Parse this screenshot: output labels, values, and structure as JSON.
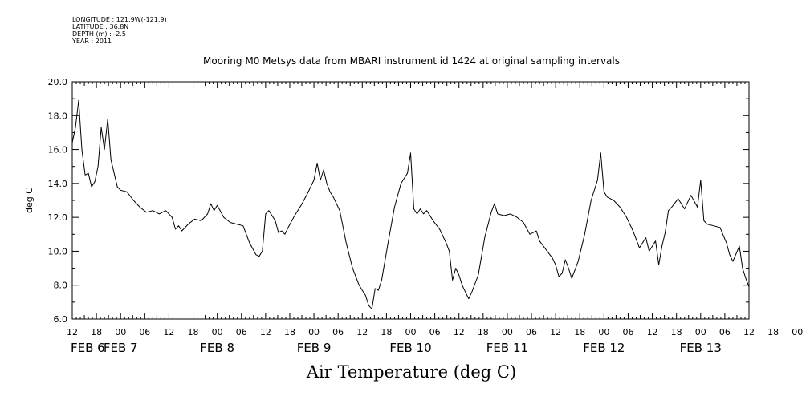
{
  "meta": {
    "longitude": "LONGITUDE : 121.9W(-121.9)",
    "latitude": "LATITUDE : 36.8N",
    "depth": "DEPTH (m) : -2.5",
    "year": "YEAR : 2011"
  },
  "chart_data": {
    "type": "line",
    "title": "Mooring M0 Metsys data from MBARI instrument id 1424 at original sampling intervals",
    "xlabel": "Air Temperature (deg C)",
    "ylabel": "deg C",
    "ylim": [
      6.0,
      20.0
    ],
    "y_ticks": [
      "6.0",
      "8.0",
      "10.0",
      "12.0",
      "14.0",
      "16.0",
      "18.0",
      "20.0"
    ],
    "x_range": [
      "2011-02-06T12:00",
      "2011-02-13T12:00"
    ],
    "x_hour_ticks": [
      "12",
      "18",
      "00",
      "06",
      "12",
      "18",
      "00",
      "06",
      "12",
      "18",
      "00",
      "06",
      "12",
      "18",
      "00",
      "06",
      "12",
      "18",
      "00",
      "06",
      "12",
      "18",
      "00",
      "06",
      "12",
      "18",
      "00",
      "06",
      "12",
      "18",
      "00",
      "06",
      "12",
      "18",
      "00",
      "06",
      "12",
      "18",
      "00",
      "06",
      "12",
      "18",
      "00",
      "06",
      "12"
    ],
    "x_day_labels": [
      {
        "label": "FEB  6",
        "at": "2011-02-06T12:00"
      },
      {
        "label": "FEB  7",
        "at": "2011-02-07T00:00"
      },
      {
        "label": "FEB  8",
        "at": "2011-02-08T00:00"
      },
      {
        "label": "FEB  9",
        "at": "2011-02-09T00:00"
      },
      {
        "label": "FEB 10",
        "at": "2011-02-10T00:00"
      },
      {
        "label": "FEB 11",
        "at": "2011-02-11T00:00"
      },
      {
        "label": "FEB 12",
        "at": "2011-02-12T00:00"
      },
      {
        "label": "FEB 13",
        "at": "2011-02-13T00:00"
      }
    ],
    "grid": false,
    "series": [
      {
        "points": [
          [
            "2011-02-06T12:00",
            16.4
          ],
          [
            "2011-02-06T12:48",
            17.3
          ],
          [
            "2011-02-06T13:36",
            18.9
          ],
          [
            "2011-02-06T14:24",
            16.0
          ],
          [
            "2011-02-06T15:12",
            14.5
          ],
          [
            "2011-02-06T16:00",
            14.6
          ],
          [
            "2011-02-06T16:48",
            13.8
          ],
          [
            "2011-02-06T17:36",
            14.1
          ],
          [
            "2011-02-06T18:24",
            15.0
          ],
          [
            "2011-02-06T19:12",
            17.3
          ],
          [
            "2011-02-06T20:00",
            16.0
          ],
          [
            "2011-02-06T20:48",
            17.8
          ],
          [
            "2011-02-06T21:36",
            15.4
          ],
          [
            "2011-02-06T22:24",
            14.6
          ],
          [
            "2011-02-06T23:12",
            13.8
          ],
          [
            "2011-02-07T00:00",
            13.6
          ],
          [
            "2011-02-07T01:36",
            13.5
          ],
          [
            "2011-02-07T03:12",
            13.0
          ],
          [
            "2011-02-07T04:48",
            12.6
          ],
          [
            "2011-02-07T06:24",
            12.3
          ],
          [
            "2011-02-07T08:00",
            12.4
          ],
          [
            "2011-02-07T09:36",
            12.2
          ],
          [
            "2011-02-07T11:12",
            12.4
          ],
          [
            "2011-02-07T12:48",
            12.0
          ],
          [
            "2011-02-07T13:36",
            11.3
          ],
          [
            "2011-02-07T14:24",
            11.5
          ],
          [
            "2011-02-07T15:12",
            11.2
          ],
          [
            "2011-02-07T16:48",
            11.6
          ],
          [
            "2011-02-07T18:24",
            11.9
          ],
          [
            "2011-02-07T20:00",
            11.8
          ],
          [
            "2011-02-07T21:36",
            12.2
          ],
          [
            "2011-02-07T22:24",
            12.8
          ],
          [
            "2011-02-07T23:12",
            12.4
          ],
          [
            "2011-02-08T00:00",
            12.7
          ],
          [
            "2011-02-08T01:36",
            12.0
          ],
          [
            "2011-02-08T03:12",
            11.7
          ],
          [
            "2011-02-08T04:48",
            11.6
          ],
          [
            "2011-02-08T06:24",
            11.5
          ],
          [
            "2011-02-08T08:00",
            10.5
          ],
          [
            "2011-02-08T09:36",
            9.8
          ],
          [
            "2011-02-08T10:24",
            9.7
          ],
          [
            "2011-02-08T11:12",
            10.0
          ],
          [
            "2011-02-08T12:00",
            12.2
          ],
          [
            "2011-02-08T12:48",
            12.4
          ],
          [
            "2011-02-08T14:24",
            11.8
          ],
          [
            "2011-02-08T15:12",
            11.1
          ],
          [
            "2011-02-08T16:00",
            11.2
          ],
          [
            "2011-02-08T16:48",
            11.0
          ],
          [
            "2011-02-08T17:36",
            11.4
          ],
          [
            "2011-02-08T19:12",
            12.1
          ],
          [
            "2011-02-08T20:48",
            12.7
          ],
          [
            "2011-02-08T22:24",
            13.4
          ],
          [
            "2011-02-09T00:00",
            14.2
          ],
          [
            "2011-02-09T00:48",
            15.2
          ],
          [
            "2011-02-09T01:36",
            14.2
          ],
          [
            "2011-02-09T02:24",
            14.8
          ],
          [
            "2011-02-09T03:12",
            14.0
          ],
          [
            "2011-02-09T04:00",
            13.5
          ],
          [
            "2011-02-09T04:48",
            13.2
          ],
          [
            "2011-02-09T06:24",
            12.4
          ],
          [
            "2011-02-09T08:00",
            10.5
          ],
          [
            "2011-02-09T09:36",
            9.0
          ],
          [
            "2011-02-09T11:12",
            8.0
          ],
          [
            "2011-02-09T12:00",
            7.7
          ],
          [
            "2011-02-09T12:48",
            7.4
          ],
          [
            "2011-02-09T13:36",
            6.8
          ],
          [
            "2011-02-09T14:24",
            6.6
          ],
          [
            "2011-02-09T15:12",
            7.8
          ],
          [
            "2011-02-09T16:00",
            7.7
          ],
          [
            "2011-02-09T16:48",
            8.3
          ],
          [
            "2011-02-09T18:24",
            10.5
          ],
          [
            "2011-02-09T20:00",
            12.6
          ],
          [
            "2011-02-09T21:36",
            14.0
          ],
          [
            "2011-02-09T23:12",
            14.6
          ],
          [
            "2011-02-10T00:00",
            15.8
          ],
          [
            "2011-02-10T00:48",
            12.5
          ],
          [
            "2011-02-10T01:36",
            12.2
          ],
          [
            "2011-02-10T02:24",
            12.5
          ],
          [
            "2011-02-10T03:12",
            12.2
          ],
          [
            "2011-02-10T04:00",
            12.4
          ],
          [
            "2011-02-10T05:36",
            11.8
          ],
          [
            "2011-02-10T07:12",
            11.3
          ],
          [
            "2011-02-10T08:48",
            10.5
          ],
          [
            "2011-02-10T09:36",
            10.0
          ],
          [
            "2011-02-10T10:24",
            8.3
          ],
          [
            "2011-02-10T11:12",
            9.0
          ],
          [
            "2011-02-10T12:00",
            8.6
          ],
          [
            "2011-02-10T12:48",
            8.0
          ],
          [
            "2011-02-10T13:36",
            7.6
          ],
          [
            "2011-02-10T14:24",
            7.2
          ],
          [
            "2011-02-10T15:12",
            7.6
          ],
          [
            "2011-02-10T16:48",
            8.6
          ],
          [
            "2011-02-10T18:24",
            10.8
          ],
          [
            "2011-02-10T20:00",
            12.3
          ],
          [
            "2011-02-10T20:48",
            12.8
          ],
          [
            "2011-02-10T21:36",
            12.2
          ],
          [
            "2011-02-10T23:12",
            12.1
          ],
          [
            "2011-02-11T00:48",
            12.2
          ],
          [
            "2011-02-11T02:24",
            12.0
          ],
          [
            "2011-02-11T04:00",
            11.7
          ],
          [
            "2011-02-11T05:36",
            11.0
          ],
          [
            "2011-02-11T07:12",
            11.2
          ],
          [
            "2011-02-11T08:00",
            10.6
          ],
          [
            "2011-02-11T09:36",
            10.1
          ],
          [
            "2011-02-11T11:12",
            9.6
          ],
          [
            "2011-02-11T12:00",
            9.2
          ],
          [
            "2011-02-11T12:48",
            8.5
          ],
          [
            "2011-02-11T13:36",
            8.7
          ],
          [
            "2011-02-11T14:24",
            9.5
          ],
          [
            "2011-02-11T15:12",
            9.0
          ],
          [
            "2011-02-11T16:00",
            8.4
          ],
          [
            "2011-02-11T17:36",
            9.4
          ],
          [
            "2011-02-11T19:12",
            11.0
          ],
          [
            "2011-02-11T20:48",
            13.0
          ],
          [
            "2011-02-11T22:24",
            14.2
          ],
          [
            "2011-02-11T23:12",
            15.8
          ],
          [
            "2011-02-12T00:00",
            13.5
          ],
          [
            "2011-02-12T00:48",
            13.2
          ],
          [
            "2011-02-12T02:24",
            13.0
          ],
          [
            "2011-02-12T04:00",
            12.6
          ],
          [
            "2011-02-12T05:36",
            12.0
          ],
          [
            "2011-02-12T07:12",
            11.2
          ],
          [
            "2011-02-12T08:48",
            10.2
          ],
          [
            "2011-02-12T10:24",
            10.8
          ],
          [
            "2011-02-12T11:12",
            10.0
          ],
          [
            "2011-02-12T12:48",
            10.6
          ],
          [
            "2011-02-12T13:36",
            9.2
          ],
          [
            "2011-02-12T14:24",
            10.3
          ],
          [
            "2011-02-12T15:12",
            11.1
          ],
          [
            "2011-02-12T16:00",
            12.4
          ],
          [
            "2011-02-12T16:48",
            12.6
          ],
          [
            "2011-02-12T18:24",
            13.1
          ],
          [
            "2011-02-12T20:00",
            12.5
          ],
          [
            "2011-02-12T21:36",
            13.3
          ],
          [
            "2011-02-12T23:12",
            12.6
          ],
          [
            "2011-02-13T00:00",
            14.2
          ],
          [
            "2011-02-13T00:48",
            11.8
          ],
          [
            "2011-02-13T01:36",
            11.6
          ],
          [
            "2011-02-13T03:12",
            11.5
          ],
          [
            "2011-02-13T04:48",
            11.4
          ],
          [
            "2011-02-13T06:24",
            10.5
          ],
          [
            "2011-02-13T07:12",
            9.8
          ],
          [
            "2011-02-13T08:00",
            9.4
          ],
          [
            "2011-02-13T09:36",
            10.3
          ],
          [
            "2011-02-13T10:24",
            9.0
          ],
          [
            "2011-02-13T11:12",
            8.4
          ],
          [
            "2011-02-13T12:00",
            7.9
          ]
        ]
      }
    ]
  }
}
